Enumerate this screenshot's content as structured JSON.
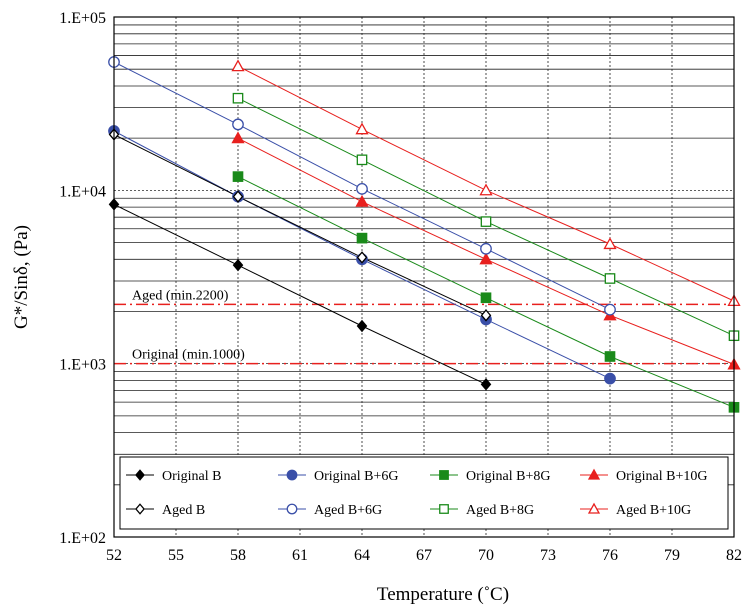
{
  "chart_data": {
    "type": "line",
    "title": "",
    "xlabel": "Temperature (˚C)",
    "ylabel": "G*/Sinδ, (Pa)",
    "xlim": [
      52,
      82
    ],
    "ylim": [
      100,
      100000
    ],
    "y_scale": "log",
    "grid": "on",
    "x_ticks": [
      "52",
      "55",
      "58",
      "61",
      "64",
      "67",
      "70",
      "73",
      "76",
      "79",
      "82"
    ],
    "y_ticks": [
      "1.E+02",
      "1.E+03",
      "1.E+04",
      "1.E+05"
    ],
    "legend_position": "bottom-inside",
    "series": [
      {
        "name": "Original B",
        "color": "#000000",
        "marker": "diamond",
        "filled": true,
        "x": [
          52,
          58,
          64,
          70
        ],
        "y": [
          8300,
          3700,
          1650,
          760
        ]
      },
      {
        "name": "Original B+6G",
        "color": "#3a4fa8",
        "marker": "circle",
        "filled": true,
        "x": [
          52,
          58,
          64,
          70,
          76
        ],
        "y": [
          22000,
          9200,
          4000,
          1800,
          820
        ]
      },
      {
        "name": "Original B+8G",
        "color": "#1a8a1a",
        "marker": "square",
        "filled": true,
        "x": [
          58,
          64,
          70,
          76,
          82
        ],
        "y": [
          12000,
          5300,
          2400,
          1100,
          560
        ]
      },
      {
        "name": "Original B+10G",
        "color": "#e8201e",
        "marker": "triangle",
        "filled": true,
        "x": [
          58,
          64,
          70,
          76,
          82
        ],
        "y": [
          20000,
          8600,
          4000,
          1900,
          990
        ]
      },
      {
        "name": "Aged B",
        "color": "#000000",
        "marker": "diamond",
        "filled": false,
        "x": [
          52,
          58,
          64,
          70
        ],
        "y": [
          21000,
          9200,
          4100,
          1900
        ]
      },
      {
        "name": "Aged B+6G",
        "color": "#3a4fa8",
        "marker": "circle",
        "filled": false,
        "x": [
          52,
          58,
          64,
          70,
          76
        ],
        "y": [
          55000,
          24000,
          10200,
          4600,
          2050
        ]
      },
      {
        "name": "Aged B+8G",
        "color": "#1a8a1a",
        "marker": "square",
        "filled": false,
        "x": [
          58,
          64,
          70,
          76,
          82
        ],
        "y": [
          34000,
          15000,
          6600,
          3100,
          1450
        ]
      },
      {
        "name": "Aged B+10G",
        "color": "#e8201e",
        "marker": "triangle",
        "filled": false,
        "x": [
          58,
          64,
          70,
          76,
          82
        ],
        "y": [
          52000,
          22500,
          10000,
          4900,
          2300
        ]
      }
    ],
    "reference_lines": [
      {
        "label": "Aged (min.2200)",
        "y": 2200,
        "color": "#e8201e"
      },
      {
        "label": "Original (min.1000)",
        "y": 1000,
        "color": "#e8201e"
      }
    ]
  }
}
